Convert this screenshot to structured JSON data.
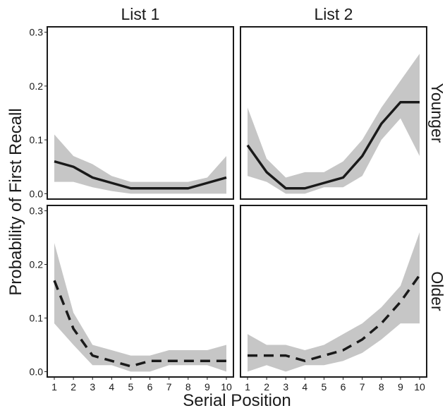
{
  "chart_data": {
    "type": "line",
    "xlabel": "Serial Position",
    "ylabel": "Probability of First Recall",
    "x": [
      1,
      2,
      3,
      4,
      5,
      6,
      7,
      8,
      9,
      10
    ],
    "x_tick_labels": [
      "1",
      "2",
      "3",
      "4",
      "5",
      "6",
      "7",
      "8",
      "9",
      "10"
    ],
    "ylim": [
      -0.01,
      0.31
    ],
    "y_ticks": [
      0.0,
      0.1,
      0.2,
      0.3
    ],
    "y_tick_labels": [
      "0.0",
      "0.1",
      "0.2",
      "0.3"
    ],
    "col_labels": [
      "List 1",
      "List 2"
    ],
    "row_labels": [
      "Younger",
      "Older"
    ],
    "band_color": "#c6c6c6",
    "line_color": "#1a1a1a",
    "grid": false,
    "panels": [
      {
        "col": "List 1",
        "row": "Younger",
        "line_style": "solid",
        "values": [
          0.06,
          0.05,
          0.03,
          0.02,
          0.01,
          0.01,
          0.01,
          0.01,
          0.02,
          0.03
        ],
        "lower": [
          0.022,
          0.022,
          0.012,
          0.005,
          0.0,
          0.0,
          0.0,
          0.0,
          0.0,
          0.0
        ],
        "upper": [
          0.11,
          0.07,
          0.055,
          0.033,
          0.022,
          0.022,
          0.022,
          0.022,
          0.03,
          0.07
        ]
      },
      {
        "col": "List 2",
        "row": "Younger",
        "line_style": "solid",
        "values": [
          0.09,
          0.04,
          0.01,
          0.01,
          0.02,
          0.03,
          0.07,
          0.13,
          0.17,
          0.17
        ],
        "lower": [
          0.033,
          0.022,
          0.0,
          0.0,
          0.012,
          0.012,
          0.033,
          0.1,
          0.14,
          0.07
        ],
        "upper": [
          0.16,
          0.065,
          0.03,
          0.04,
          0.04,
          0.06,
          0.1,
          0.16,
          0.21,
          0.26
        ]
      },
      {
        "col": "List 1",
        "row": "Older",
        "line_style": "dashed",
        "values": [
          0.17,
          0.08,
          0.03,
          0.02,
          0.01,
          0.02,
          0.02,
          0.02,
          0.02,
          0.02
        ],
        "lower": [
          0.09,
          0.05,
          0.012,
          0.012,
          0.0,
          0.0,
          0.012,
          0.012,
          0.012,
          0.0
        ],
        "upper": [
          0.24,
          0.11,
          0.05,
          0.04,
          0.03,
          0.03,
          0.04,
          0.04,
          0.04,
          0.05
        ]
      },
      {
        "col": "List 2",
        "row": "Older",
        "line_style": "dashed",
        "values": [
          0.03,
          0.03,
          0.03,
          0.02,
          0.03,
          0.04,
          0.06,
          0.09,
          0.13,
          0.18
        ],
        "lower": [
          0.0,
          0.012,
          0.0,
          0.012,
          0.012,
          0.02,
          0.035,
          0.06,
          0.09,
          0.09
        ],
        "upper": [
          0.07,
          0.05,
          0.05,
          0.04,
          0.05,
          0.07,
          0.09,
          0.12,
          0.16,
          0.26
        ]
      }
    ]
  }
}
